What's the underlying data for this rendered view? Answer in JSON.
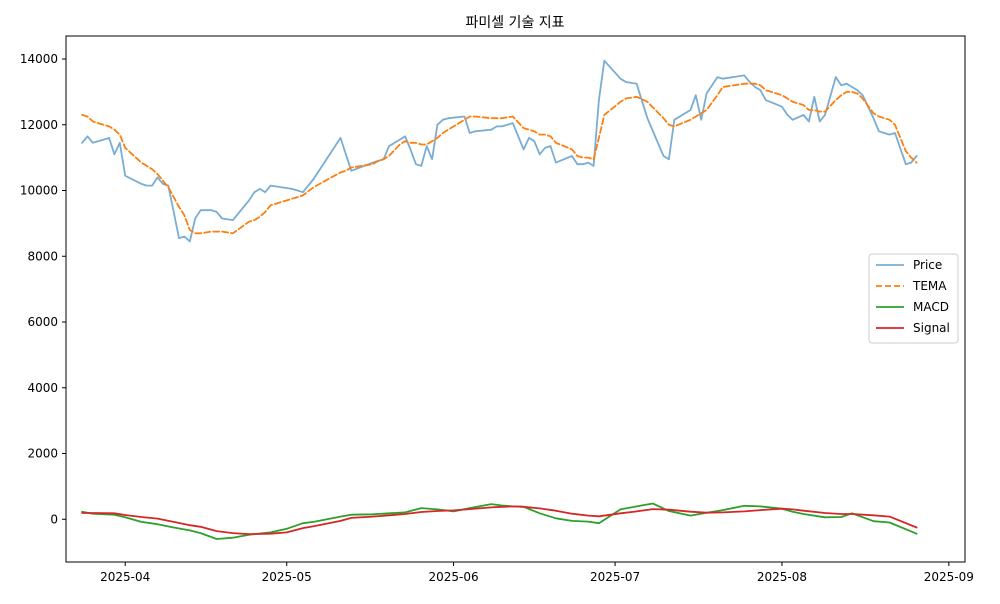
{
  "chart_data": {
    "type": "line",
    "title": "파미셀 기술 지표",
    "xlabel": "",
    "ylabel": "",
    "x_range": [
      "2025-03-21",
      "2025-09-04"
    ],
    "ylim": [
      -1300,
      14700
    ],
    "y_ticks": [
      0,
      2000,
      4000,
      6000,
      8000,
      10000,
      12000,
      14000
    ],
    "y_tick_labels": [
      "0",
      "2000",
      "4000",
      "6000",
      "8000",
      "10000",
      "12000",
      "14000"
    ],
    "x_ticks": [
      "2025-04-01",
      "2025-05-01",
      "2025-06-01",
      "2025-07-01",
      "2025-08-01",
      "2025-09-01"
    ],
    "x_tick_labels": [
      "2025-04",
      "2025-05",
      "2025-06",
      "2025-07",
      "2025-08",
      "2025-09"
    ],
    "grid": false,
    "legend_position": "center-right",
    "series": [
      {
        "name": "Price",
        "color": "#1f77b4",
        "alpha": 0.6,
        "dash": "solid",
        "x": [
          "2025-03-24",
          "2025-03-25",
          "2025-03-26",
          "2025-03-28",
          "2025-03-29",
          "2025-03-30",
          "2025-03-31",
          "2025-04-01",
          "2025-04-04",
          "2025-04-05",
          "2025-04-06",
          "2025-04-07",
          "2025-04-08",
          "2025-04-09",
          "2025-04-10",
          "2025-04-11",
          "2025-04-12",
          "2025-04-13",
          "2025-04-14",
          "2025-04-15",
          "2025-04-17",
          "2025-04-18",
          "2025-04-19",
          "2025-04-21",
          "2025-04-24",
          "2025-04-25",
          "2025-04-26",
          "2025-04-27",
          "2025-04-28",
          "2025-05-02",
          "2025-05-03",
          "2025-05-04",
          "2025-05-06",
          "2025-05-11",
          "2025-05-12",
          "2025-05-13",
          "2025-05-17",
          "2025-05-18",
          "2025-05-19",
          "2025-05-20",
          "2025-05-22",
          "2025-05-23",
          "2025-05-24",
          "2025-05-25",
          "2025-05-26",
          "2025-05-27",
          "2025-05-28",
          "2025-05-29",
          "2025-05-30",
          "2025-05-31",
          "2025-06-03",
          "2025-06-04",
          "2025-06-05",
          "2025-06-08",
          "2025-06-09",
          "2025-06-10",
          "2025-06-12",
          "2025-06-14",
          "2025-06-15",
          "2025-06-16",
          "2025-06-17",
          "2025-06-18",
          "2025-06-19",
          "2025-06-20",
          "2025-06-23",
          "2025-06-24",
          "2025-06-25",
          "2025-06-26",
          "2025-06-27",
          "2025-06-28",
          "2025-06-29",
          "2025-07-02",
          "2025-07-03",
          "2025-07-05",
          "2025-07-07",
          "2025-07-10",
          "2025-07-11",
          "2025-07-12",
          "2025-07-15",
          "2025-07-16",
          "2025-07-17",
          "2025-07-18",
          "2025-07-20",
          "2025-07-21",
          "2025-07-25",
          "2025-07-26",
          "2025-07-27",
          "2025-07-28",
          "2025-07-29",
          "2025-08-01",
          "2025-08-02",
          "2025-08-03",
          "2025-08-05",
          "2025-08-06",
          "2025-08-07",
          "2025-08-08",
          "2025-08-09",
          "2025-08-11",
          "2025-08-12",
          "2025-08-13",
          "2025-08-14",
          "2025-08-15",
          "2025-08-16",
          "2025-08-18",
          "2025-08-19",
          "2025-08-21",
          "2025-08-22",
          "2025-08-24",
          "2025-08-25",
          "2025-08-26"
        ],
        "values": [
          11450,
          11650,
          11450,
          11550,
          11600,
          11100,
          11450,
          10450,
          10200,
          10150,
          10150,
          10400,
          10200,
          10150,
          9350,
          8550,
          8600,
          8450,
          9150,
          9400,
          9400,
          9350,
          9150,
          9100,
          9700,
          9950,
          10050,
          9950,
          10150,
          10050,
          10000,
          9950,
          10350,
          11600,
          11100,
          10600,
          10850,
          10900,
          10950,
          11350,
          11550,
          11650,
          11250,
          10800,
          10750,
          11350,
          10950,
          12000,
          12150,
          12200,
          12250,
          11750,
          11800,
          11850,
          11950,
          11950,
          12050,
          11250,
          11600,
          11500,
          11100,
          11300,
          11350,
          10850,
          11050,
          10800,
          10800,
          10850,
          10750,
          12750,
          13950,
          13400,
          13300,
          13250,
          12200,
          11050,
          10950,
          12150,
          12450,
          12900,
          12150,
          12950,
          13450,
          13400,
          13500,
          13300,
          13150,
          13050,
          12750,
          12550,
          12300,
          12150,
          12300,
          12100,
          12850,
          12100,
          12300,
          13450,
          13200,
          13250,
          13150,
          13050,
          12900,
          12200,
          11800,
          11700,
          11750,
          10800,
          10850,
          11050
        ]
      },
      {
        "name": "TEMA",
        "color": "#ff7f0e",
        "alpha": 1,
        "dash": "dashed",
        "x": [
          "2025-03-24",
          "2025-03-25",
          "2025-03-26",
          "2025-03-28",
          "2025-03-29",
          "2025-03-30",
          "2025-03-31",
          "2025-04-01",
          "2025-04-04",
          "2025-04-05",
          "2025-04-06",
          "2025-04-07",
          "2025-04-08",
          "2025-04-09",
          "2025-04-10",
          "2025-04-11",
          "2025-04-12",
          "2025-04-13",
          "2025-04-14",
          "2025-04-15",
          "2025-04-17",
          "2025-04-18",
          "2025-04-19",
          "2025-04-21",
          "2025-04-24",
          "2025-04-25",
          "2025-04-26",
          "2025-04-27",
          "2025-04-28",
          "2025-05-02",
          "2025-05-03",
          "2025-05-04",
          "2025-05-06",
          "2025-05-11",
          "2025-05-12",
          "2025-05-13",
          "2025-05-17",
          "2025-05-18",
          "2025-05-19",
          "2025-05-20",
          "2025-05-22",
          "2025-05-23",
          "2025-05-24",
          "2025-05-25",
          "2025-05-26",
          "2025-05-27",
          "2025-05-28",
          "2025-05-29",
          "2025-05-30",
          "2025-05-31",
          "2025-06-03",
          "2025-06-04",
          "2025-06-05",
          "2025-06-08",
          "2025-06-09",
          "2025-06-10",
          "2025-06-12",
          "2025-06-14",
          "2025-06-15",
          "2025-06-16",
          "2025-06-17",
          "2025-06-18",
          "2025-06-19",
          "2025-06-20",
          "2025-06-23",
          "2025-06-24",
          "2025-06-25",
          "2025-06-26",
          "2025-06-27",
          "2025-06-28",
          "2025-06-29",
          "2025-07-02",
          "2025-07-03",
          "2025-07-05",
          "2025-07-07",
          "2025-07-10",
          "2025-07-11",
          "2025-07-12",
          "2025-07-15",
          "2025-07-16",
          "2025-07-17",
          "2025-07-18",
          "2025-07-20",
          "2025-07-21",
          "2025-07-25",
          "2025-07-26",
          "2025-07-27",
          "2025-07-28",
          "2025-07-29",
          "2025-08-01",
          "2025-08-02",
          "2025-08-03",
          "2025-08-05",
          "2025-08-06",
          "2025-08-07",
          "2025-08-08",
          "2025-08-09",
          "2025-08-11",
          "2025-08-12",
          "2025-08-13",
          "2025-08-14",
          "2025-08-15",
          "2025-08-16",
          "2025-08-18",
          "2025-08-19",
          "2025-08-21",
          "2025-08-22",
          "2025-08-24",
          "2025-08-25",
          "2025-08-26"
        ],
        "values": [
          12300,
          12250,
          12100,
          12000,
          11950,
          11850,
          11700,
          11300,
          10850,
          10750,
          10650,
          10500,
          10300,
          10100,
          9800,
          9500,
          9250,
          8800,
          8700,
          8700,
          8750,
          8750,
          8750,
          8700,
          9050,
          9100,
          9200,
          9350,
          9550,
          9750,
          9800,
          9850,
          10100,
          10550,
          10600,
          10700,
          10800,
          10900,
          10950,
          11050,
          11400,
          11500,
          11450,
          11450,
          11400,
          11400,
          11500,
          11600,
          11750,
          11850,
          12150,
          12250,
          12250,
          12200,
          12200,
          12200,
          12250,
          11900,
          11850,
          11800,
          11700,
          11700,
          11650,
          11450,
          11250,
          11050,
          11000,
          11000,
          10950,
          11600,
          12300,
          12700,
          12800,
          12850,
          12700,
          12200,
          12000,
          11950,
          12150,
          12250,
          12350,
          12450,
          12900,
          13150,
          13250,
          13250,
          13250,
          13200,
          13050,
          12900,
          12800,
          12700,
          12600,
          12450,
          12450,
          12400,
          12400,
          12750,
          12900,
          13000,
          13000,
          12950,
          12800,
          12350,
          12250,
          12150,
          12000,
          11200,
          11000,
          10850
        ]
      },
      {
        "name": "MACD",
        "color": "#2ca02c",
        "alpha": 1,
        "dash": "solid",
        "x": [
          "2025-03-24",
          "2025-03-26",
          "2025-03-30",
          "2025-04-01",
          "2025-04-04",
          "2025-04-07",
          "2025-04-10",
          "2025-04-13",
          "2025-04-15",
          "2025-04-18",
          "2025-04-21",
          "2025-04-24",
          "2025-04-28",
          "2025-05-01",
          "2025-05-04",
          "2025-05-06",
          "2025-05-11",
          "2025-05-13",
          "2025-05-17",
          "2025-05-20",
          "2025-05-23",
          "2025-05-26",
          "2025-05-29",
          "2025-06-01",
          "2025-06-04",
          "2025-06-08",
          "2025-06-10",
          "2025-06-12",
          "2025-06-14",
          "2025-06-17",
          "2025-06-20",
          "2025-06-23",
          "2025-06-26",
          "2025-06-28",
          "2025-07-02",
          "2025-07-05",
          "2025-07-08",
          "2025-07-11",
          "2025-07-15",
          "2025-07-18",
          "2025-07-21",
          "2025-07-25",
          "2025-07-28",
          "2025-08-01",
          "2025-08-03",
          "2025-08-05",
          "2025-08-09",
          "2025-08-12",
          "2025-08-14",
          "2025-08-18",
          "2025-08-21",
          "2025-08-26"
        ],
        "values": [
          230,
          170,
          140,
          60,
          -80,
          -150,
          -250,
          -340,
          -420,
          -600,
          -560,
          -470,
          -400,
          -290,
          -120,
          -80,
          80,
          140,
          150,
          180,
          210,
          340,
          300,
          240,
          340,
          460,
          420,
          390,
          380,
          180,
          30,
          -50,
          -70,
          -120,
          300,
          390,
          480,
          250,
          110,
          200,
          280,
          410,
          390,
          320,
          230,
          160,
          60,
          70,
          180,
          -60,
          -100,
          -440
        ]
      },
      {
        "name": "Signal",
        "color": "#d62728",
        "alpha": 1,
        "dash": "solid",
        "x": [
          "2025-03-24",
          "2025-03-26",
          "2025-03-30",
          "2025-04-01",
          "2025-04-04",
          "2025-04-07",
          "2025-04-10",
          "2025-04-13",
          "2025-04-15",
          "2025-04-18",
          "2025-04-21",
          "2025-04-24",
          "2025-04-28",
          "2025-05-01",
          "2025-05-04",
          "2025-05-06",
          "2025-05-11",
          "2025-05-13",
          "2025-05-17",
          "2025-05-20",
          "2025-05-23",
          "2025-05-26",
          "2025-05-29",
          "2025-06-01",
          "2025-06-04",
          "2025-06-08",
          "2025-06-10",
          "2025-06-12",
          "2025-06-14",
          "2025-06-17",
          "2025-06-20",
          "2025-06-23",
          "2025-06-26",
          "2025-06-28",
          "2025-07-02",
          "2025-07-05",
          "2025-07-08",
          "2025-07-11",
          "2025-07-15",
          "2025-07-18",
          "2025-07-21",
          "2025-07-25",
          "2025-07-28",
          "2025-08-01",
          "2025-08-03",
          "2025-08-05",
          "2025-08-09",
          "2025-08-12",
          "2025-08-14",
          "2025-08-18",
          "2025-08-21",
          "2025-08-26"
        ],
        "values": [
          190,
          190,
          180,
          130,
          70,
          20,
          -80,
          -180,
          -230,
          -360,
          -420,
          -450,
          -440,
          -400,
          -270,
          -210,
          -50,
          40,
          80,
          120,
          160,
          220,
          250,
          270,
          310,
          360,
          380,
          390,
          380,
          330,
          260,
          170,
          110,
          90,
          180,
          240,
          310,
          290,
          230,
          200,
          210,
          240,
          280,
          320,
          300,
          260,
          190,
          160,
          160,
          120,
          80,
          -250
        ]
      }
    ]
  }
}
